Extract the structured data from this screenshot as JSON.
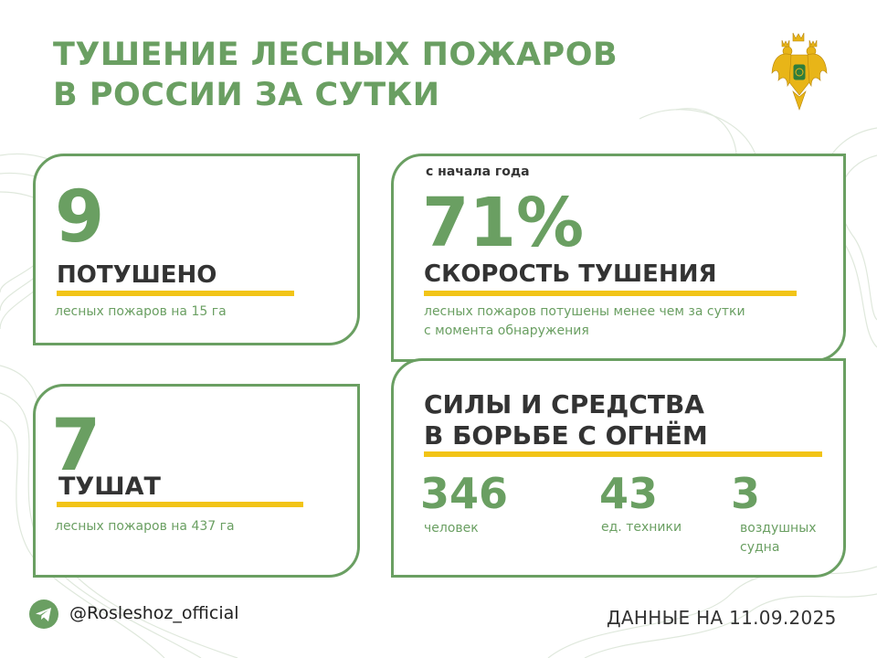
{
  "header": {
    "title_line1": "ТУШЕНИЕ ЛЕСНЫХ ПОЖАРОВ",
    "title_line2": "В РОССИИ ЗА СУТКИ"
  },
  "extinguished": {
    "number": "9",
    "label": "ПОТУШЕНО",
    "caption": "лесных пожаров на 15 га"
  },
  "fighting": {
    "number": "7",
    "label": "ТУШАТ",
    "caption": "лесных пожаров на 437 га"
  },
  "speed": {
    "eyebrow": "с начала года",
    "number": "71%",
    "label": "СКОРОСТЬ ТУШЕНИЯ",
    "caption_line1": "лесных пожаров потушены менее чем за сутки",
    "caption_line2": "с момента обнаружения"
  },
  "forces": {
    "title_line1": "СИЛЫ И СРЕДСТВА",
    "title_line2": "В БОРЬБЕ С ОГНЁМ",
    "people_number": "346",
    "people_label": "человек",
    "vehicles_number": "43",
    "vehicles_label": "ед. техники",
    "aircraft_number": "3",
    "aircraft_label_line1": "воздушных",
    "aircraft_label_line2": "судна"
  },
  "footer": {
    "handle": "@Rosleshoz_official",
    "date": "ДАННЫЕ НА 11.09.2025",
    "icon": "telegram-icon"
  },
  "colors": {
    "accent_green": "#6a9f62",
    "highlight_yellow": "#f2c417",
    "text_dark": "#333333",
    "emblem_gold": "#e8b518"
  }
}
